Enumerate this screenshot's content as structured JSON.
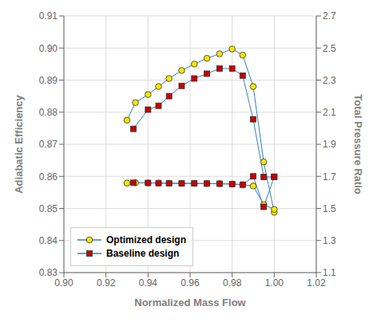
{
  "chart_data": {
    "type": "line",
    "x_label": "Normalized Mass Flow",
    "y_label": "Adiabatic Efficiency",
    "y2_label": "Total Pressure Ratio",
    "xlim": [
      0.9,
      1.02
    ],
    "xticks": [
      {
        "value": 0.9,
        "label": "0.90"
      },
      0.92,
      0.94,
      0.96,
      0.98,
      {
        "value": 1.0,
        "label": "1.00"
      },
      1.02
    ],
    "ylim": [
      0.83,
      0.91
    ],
    "yticks": [
      0.83,
      0.84,
      0.85,
      0.86,
      0.87,
      0.88,
      0.89,
      {
        "value": 0.9,
        "label": "0.90"
      },
      0.91
    ],
    "y2lim": [
      1.1,
      2.7
    ],
    "y2ticks": [
      1.1,
      1.3,
      1.5,
      1.7,
      1.9,
      2.1,
      2.3,
      2.5,
      2.7
    ],
    "grid": true,
    "legend": "lower left",
    "series": [
      {
        "name": "Optimized design",
        "color": "#f5e800",
        "marker": "circle",
        "x": [
          0.93,
          0.934,
          0.94,
          0.945,
          0.95,
          0.956,
          0.962,
          0.968,
          0.974,
          0.98,
          0.985,
          0.99,
          0.995,
          1.0
        ],
        "values": [
          0.8775,
          0.883,
          0.8855,
          0.888,
          0.8905,
          0.893,
          0.895,
          0.8968,
          0.8982,
          0.8997,
          0.8978,
          0.888,
          0.8645,
          0.8488
        ]
      },
      {
        "name": "Baseline design",
        "color": "#cc0000",
        "marker": "square",
        "x": [
          0.933,
          0.94,
          0.945,
          0.95,
          0.956,
          0.962,
          0.968,
          0.974,
          0.98,
          0.985,
          0.99,
          0.995,
          1.0
        ],
        "values": [
          0.8748,
          0.8808,
          0.882,
          0.885,
          0.8882,
          0.8905,
          0.892,
          0.8936,
          0.8936,
          0.8914,
          0.8778,
          0.8598,
          0.8598
        ]
      },
      {
        "axis": "y2",
        "color": "#f5e800",
        "marker": "circle",
        "x": [
          0.93,
          0.934,
          0.94,
          0.945,
          0.95,
          0.956,
          0.962,
          0.968,
          0.974,
          0.98,
          0.985,
          0.99,
          0.995,
          1.0
        ],
        "values": [
          1.658,
          1.66,
          1.659,
          1.658,
          1.657,
          1.656,
          1.656,
          1.655,
          1.654,
          1.652,
          1.648,
          1.64,
          1.524,
          1.494
        ]
      },
      {
        "axis": "y2",
        "color": "#cc0000",
        "marker": "square",
        "x": [
          0.933,
          0.94,
          0.945,
          0.95,
          0.956,
          0.962,
          0.968,
          0.974,
          0.98,
          0.985,
          0.99,
          0.995,
          1.0
        ],
        "values": [
          1.66,
          1.659,
          1.658,
          1.657,
          1.656,
          1.656,
          1.655,
          1.654,
          1.652,
          1.648,
          1.7,
          1.51,
          1.698
        ]
      }
    ]
  }
}
